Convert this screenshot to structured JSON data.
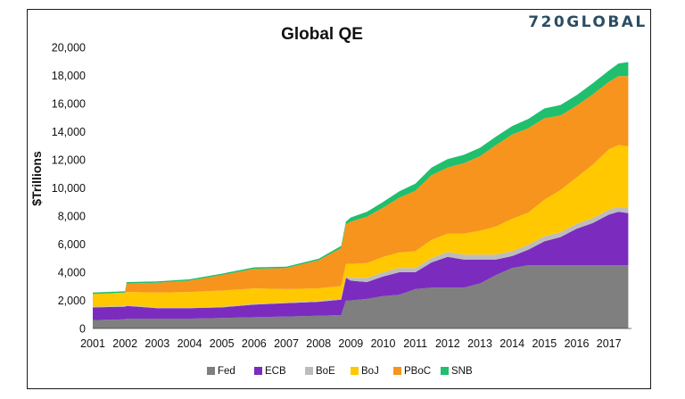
{
  "chart_data": {
    "type": "area",
    "stacked": true,
    "title": "Global QE",
    "xlabel": "",
    "ylabel": "$Trillions",
    "logo": "720GLOBAL",
    "ylim": [
      0,
      20000
    ],
    "yticks": [
      0,
      2000,
      4000,
      6000,
      8000,
      10000,
      12000,
      14000,
      16000,
      18000,
      20000
    ],
    "ytick_labels": [
      "0",
      "2,000",
      "4,000",
      "6,000",
      "8,000",
      "10,000",
      "12,000",
      "14,000",
      "16,000",
      "18,000",
      "20,000"
    ],
    "xlim": [
      2001,
      2017.7
    ],
    "xticks": [
      "2001",
      "2002",
      "2003",
      "2004",
      "2005",
      "2006",
      "2007",
      "2008",
      "2009",
      "2010",
      "2011",
      "2012",
      "2013",
      "2014",
      "2015",
      "2016",
      "2017"
    ],
    "legend_position": "bottom",
    "x": [
      2001.0,
      2002.0,
      2002.05,
      2003.0,
      2004.0,
      2005.0,
      2006.0,
      2007.0,
      2008.0,
      2008.7,
      2008.85,
      2009.0,
      2009.5,
      2010.0,
      2010.5,
      2011.0,
      2011.5,
      2012.0,
      2012.5,
      2013.0,
      2013.5,
      2014.0,
      2014.5,
      2015.0,
      2015.5,
      2016.0,
      2016.5,
      2017.0,
      2017.3,
      2017.6
    ],
    "series": [
      {
        "name": "Fed",
        "color": "#7f7f7f",
        "values": [
          600,
          650,
          700,
          700,
          700,
          750,
          800,
          850,
          900,
          950,
          2000,
          2000,
          2100,
          2300,
          2400,
          2800,
          2900,
          2900,
          2900,
          3200,
          3800,
          4300,
          4500,
          4500,
          4500,
          4500,
          4500,
          4500,
          4500,
          4500
        ]
      },
      {
        "name": "ECB",
        "color": "#7b2cbf",
        "values": [
          900,
          900,
          900,
          750,
          750,
          750,
          900,
          950,
          1000,
          1100,
          1600,
          1400,
          1200,
          1400,
          1600,
          1200,
          1800,
          2200,
          2000,
          1700,
          1100,
          850,
          1100,
          1700,
          2000,
          2600,
          3000,
          3600,
          3800,
          3700
        ]
      },
      {
        "name": "BoE",
        "color": "#bcbcbc",
        "values": [
          50,
          50,
          50,
          50,
          50,
          50,
          50,
          50,
          60,
          70,
          100,
          200,
          300,
          300,
          300,
          300,
          300,
          350,
          350,
          350,
          350,
          350,
          350,
          350,
          350,
          350,
          350,
          350,
          350,
          350
        ]
      },
      {
        "name": "BoJ",
        "color": "#ffc800",
        "values": [
          900,
          950,
          950,
          1050,
          1100,
          1150,
          1100,
          950,
          900,
          900,
          900,
          1000,
          1050,
          1100,
          1100,
          1200,
          1300,
          1300,
          1500,
          1700,
          2000,
          2300,
          2300,
          2600,
          3000,
          3300,
          3800,
          4300,
          4400,
          4400
        ]
      },
      {
        "name": "PBoC",
        "color": "#f7941d",
        "values": [
          0,
          0,
          600,
          700,
          800,
          1100,
          1400,
          1500,
          2000,
          2700,
          2800,
          3000,
          3300,
          3500,
          3900,
          4300,
          4600,
          4700,
          5000,
          5300,
          5800,
          6000,
          6000,
          5800,
          5300,
          5100,
          5000,
          4800,
          4900,
          5000
        ]
      },
      {
        "name": "SNB",
        "color": "#1fbf6e",
        "values": [
          100,
          100,
          100,
          100,
          100,
          100,
          100,
          100,
          100,
          150,
          200,
          300,
          350,
          400,
          450,
          500,
          550,
          600,
          600,
          600,
          600,
          600,
          650,
          700,
          750,
          750,
          800,
          800,
          900,
          1000
        ]
      }
    ]
  }
}
